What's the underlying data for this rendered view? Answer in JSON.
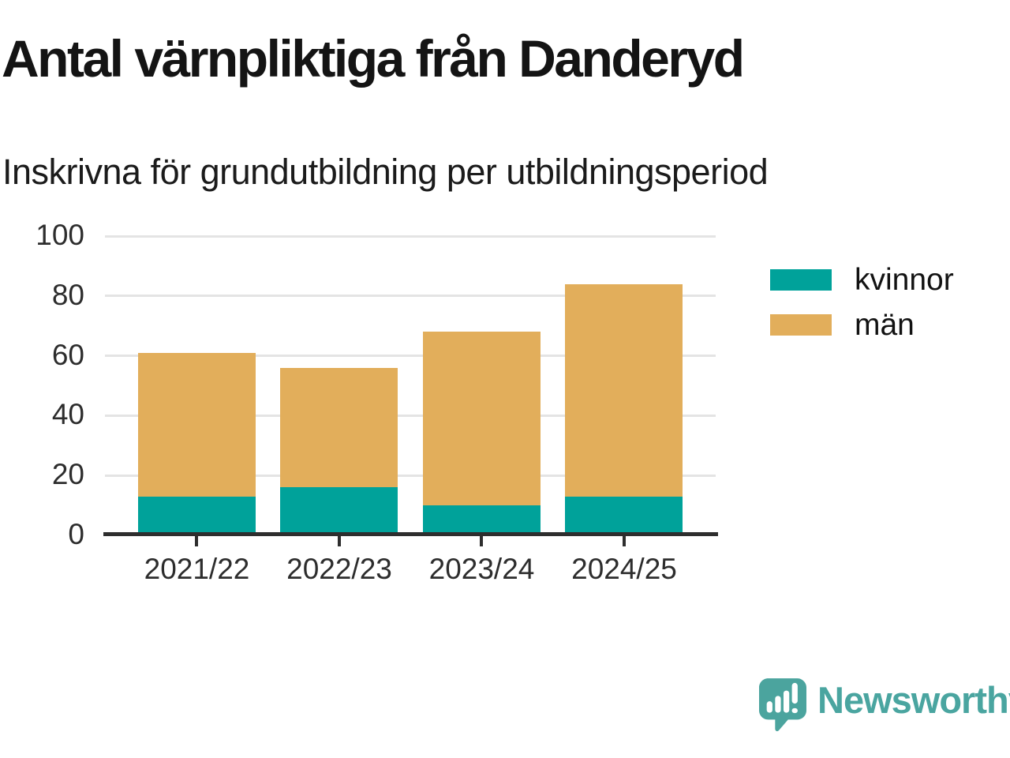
{
  "chart_data": {
    "type": "bar",
    "stacked": true,
    "title": "Antal värnpliktiga från Danderyd",
    "subtitle": "Inskrivna för grundutbildning per utbildningsperiod",
    "categories": [
      "2021/22",
      "2022/23",
      "2023/24",
      "2024/25"
    ],
    "series": [
      {
        "name": "kvinnor",
        "color": "#00a29a",
        "values": [
          13,
          16,
          10,
          13
        ]
      },
      {
        "name": "män",
        "color": "#e2ae5b",
        "values": [
          48,
          40,
          58,
          71
        ]
      }
    ],
    "stacked_totals": [
      61,
      56,
      68,
      84
    ],
    "ylim": [
      0,
      100
    ],
    "yticks": [
      0,
      20,
      40,
      60,
      80,
      100
    ],
    "xlabel": "",
    "ylabel": "",
    "grid": "horizontal-light",
    "legend_position": "right"
  },
  "legend": {
    "items": [
      {
        "label": "kvinnor",
        "color": "#00a29a"
      },
      {
        "label": "män",
        "color": "#e2ae5b"
      }
    ]
  },
  "branding": {
    "name": "Newsworthy",
    "icon": "speech-bubble-bar-chart-icon",
    "icon_color": "#4ba49e",
    "text_color": "#4aa5a0"
  },
  "colors": {
    "axis_line": "#2e2e2e",
    "grid_line": "#e4e4e4",
    "tick_text": "#2d2d2d",
    "title_text": "#141414"
  }
}
